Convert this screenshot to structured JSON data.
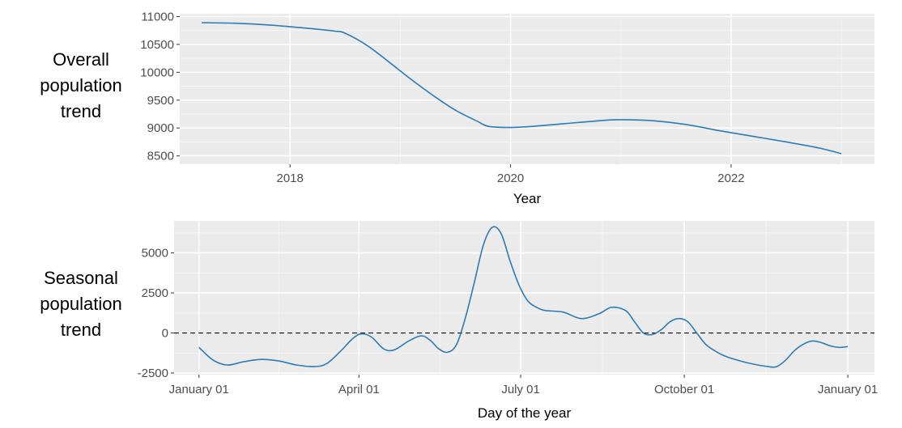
{
  "chart_data": [
    {
      "type": "line",
      "side_label": "Overall\npopulation\ntrend",
      "xlabel": "Year",
      "ylabel": "",
      "title": "",
      "xlim": [
        2017.0,
        2023.3
      ],
      "ylim": [
        8350,
        11050
      ],
      "x_ticks": [
        2018,
        2020,
        2022
      ],
      "x_tick_labels": [
        "2018",
        "2020",
        "2022"
      ],
      "y_ticks": [
        8500,
        9000,
        9500,
        10000,
        10500,
        11000
      ],
      "y_tick_labels": [
        "8500",
        "9000",
        "9500",
        "10000",
        "10500",
        "11000"
      ],
      "grid": true,
      "line_color": "#2c7bb6",
      "series": [
        {
          "x": [
            2017.2,
            2017.5,
            2017.8,
            2018.1,
            2018.4,
            2018.5,
            2018.7,
            2018.9,
            2019.1,
            2019.3,
            2019.5,
            2019.7,
            2019.8,
            2020.0,
            2020.2,
            2020.5,
            2020.8,
            2021.0,
            2021.3,
            2021.6,
            2021.9,
            2022.2,
            2022.5,
            2022.8,
            2023.0
          ],
          "y": [
            10890,
            10880,
            10850,
            10800,
            10740,
            10700,
            10480,
            10180,
            9870,
            9580,
            9320,
            9120,
            9030,
            9010,
            9030,
            9080,
            9130,
            9150,
            9130,
            9060,
            8950,
            8850,
            8750,
            8640,
            8540
          ]
        }
      ]
    },
    {
      "type": "line",
      "side_label": "Seasonal\npopulation\ntrend",
      "xlabel": "Day of the year",
      "ylabel": "",
      "title": "",
      "xlim": [
        -14,
        380
      ],
      "ylim": [
        -2600,
        7000
      ],
      "x_ticks": [
        0,
        90,
        181,
        273,
        365
      ],
      "x_tick_labels": [
        "January 01",
        "April 01",
        "July 01",
        "October 01",
        "January 01"
      ],
      "y_ticks": [
        -2500,
        0,
        2500,
        5000
      ],
      "y_tick_labels": [
        "-2500",
        "0",
        "2500",
        "5000"
      ],
      "grid": true,
      "line_color": "#2c7bb6",
      "reference_line": {
        "y": 0,
        "style": "dashed",
        "color": "#000000"
      },
      "series": [
        {
          "x": [
            0,
            8,
            16,
            25,
            35,
            45,
            55,
            65,
            72,
            80,
            86,
            91,
            97,
            104,
            110,
            118,
            125,
            130,
            135,
            140,
            145,
            150,
            155,
            160,
            165,
            170,
            175,
            180,
            185,
            190,
            195,
            205,
            215,
            225,
            232,
            240,
            245,
            250,
            255,
            260,
            265,
            270,
            275,
            280,
            285,
            290,
            295,
            300,
            310,
            320,
            325,
            330,
            335,
            340,
            345,
            350,
            355,
            360,
            365
          ],
          "y": [
            -900,
            -1700,
            -2000,
            -1800,
            -1650,
            -1750,
            -2000,
            -2100,
            -1900,
            -1100,
            -400,
            -60,
            -250,
            -1000,
            -1050,
            -500,
            -180,
            -450,
            -1000,
            -1200,
            -700,
            1000,
            3200,
            5500,
            6600,
            6200,
            4500,
            3000,
            2000,
            1600,
            1400,
            1300,
            900,
            1200,
            1600,
            1400,
            700,
            0,
            -100,
            200,
            700,
            900,
            700,
            0,
            -700,
            -1100,
            -1400,
            -1600,
            -1900,
            -2100,
            -2100,
            -1700,
            -1100,
            -700,
            -500,
            -600,
            -800,
            -900,
            -850
          ]
        }
      ]
    }
  ]
}
